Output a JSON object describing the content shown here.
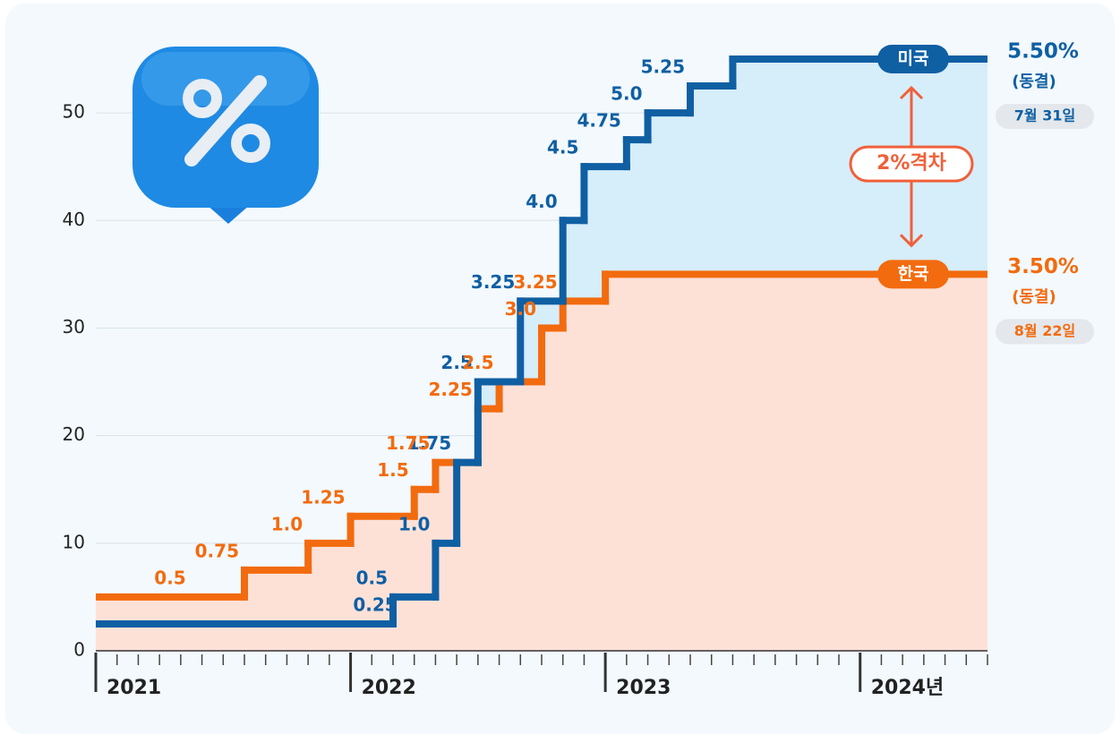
{
  "chart_data": {
    "type": "step",
    "series": [
      {
        "name": "미국",
        "color": "#0f5fa3",
        "fill": "#d6edfa",
        "x": [
          0,
          14,
          16,
          17,
          18,
          20,
          22,
          23,
          25,
          26,
          28,
          30
        ],
        "values": [
          2.5,
          5,
          10,
          17.5,
          25,
          32.5,
          40,
          45,
          47.5,
          50,
          52.5,
          55
        ],
        "value_labels": [
          "0.25",
          "0.5",
          "1.0",
          "1.75",
          "2.5",
          "3.25",
          "4.0",
          "4.5",
          "4.75",
          "5.0",
          "5.25",
          "5.50%"
        ]
      },
      {
        "name": "한국",
        "color": "#f26b0f",
        "fill": "#fde1d7",
        "x": [
          0,
          7,
          10,
          12,
          15,
          16,
          18,
          19,
          21,
          22,
          24
        ],
        "values": [
          5,
          7.5,
          10,
          12.5,
          15,
          17.5,
          22.5,
          25,
          30,
          32.5,
          35
        ],
        "value_labels": [
          "0.5",
          "0.75",
          "1.0",
          "1.25",
          "1.5",
          "1.75",
          "2.25",
          "2.5",
          "3.0",
          "3.25",
          "3.50%"
        ]
      }
    ],
    "annotations": {
      "us_status": "(동결)",
      "us_date": "7월 31일",
      "kr_status": "(동결)",
      "kr_date": "8월 22일",
      "gap": "2%격차"
    },
    "xlim": [
      0,
      42
    ],
    "xticks": [
      {
        "value": 0,
        "label": "2021"
      },
      {
        "value": 12,
        "label": "2022"
      },
      {
        "value": 24,
        "label": "2023"
      },
      {
        "value": 36,
        "label": "2024년"
      }
    ],
    "ylim": [
      0,
      55
    ],
    "yticks": [
      0,
      10,
      20,
      30,
      40,
      50
    ],
    "grid": true
  }
}
